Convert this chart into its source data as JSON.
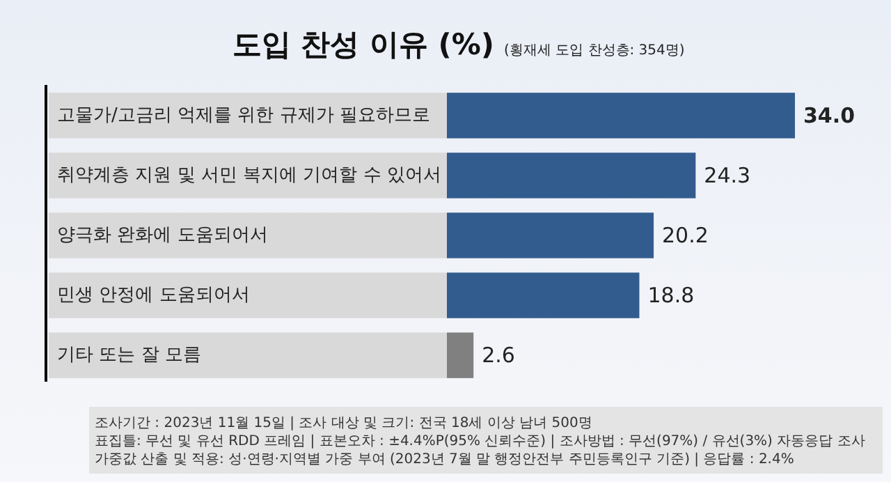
{
  "chart_data": {
    "type": "bar",
    "orientation": "horizontal",
    "title": "도입 찬성 이유 (%)",
    "subtitle": "(횡재세 도입 찬성층: 354명)",
    "categories": [
      "고물가/고금리 억제를 위한 규제가 필요하므로",
      "취약계층 지원 및 서민 복지에 기여할 수 있어서",
      "양극화 완화에 도움되어서",
      "민생 안정에 도움되어서",
      "기타 또는 잘 모름"
    ],
    "values": [
      34.0,
      24.3,
      20.2,
      18.8,
      2.6
    ],
    "colors": [
      "#335c8e",
      "#335c8e",
      "#335c8e",
      "#335c8e",
      "#808080"
    ],
    "value_labels": [
      "34.0",
      "24.3",
      "20.2",
      "18.8",
      "2.6"
    ],
    "annotations": [
      "조사기간 : 2023년 11월 15일 | 조사 대상 및 크기: 전국 18세 이상 남녀 500명",
      "표집틀: 무선 및 유선 RDD 프레임 | 표본오차 : ±4.4%P(95% 신뢰수준) | 조사방법 : 무선(97%) / 유선(3%) 자동응답 조사",
      "가중값 산출 및 적용: 성·연령·지역별 가중 부여 (2023년 7월 말 행정안전부 주민등록인구 기준) | 응답률 : 2.4%"
    ]
  }
}
